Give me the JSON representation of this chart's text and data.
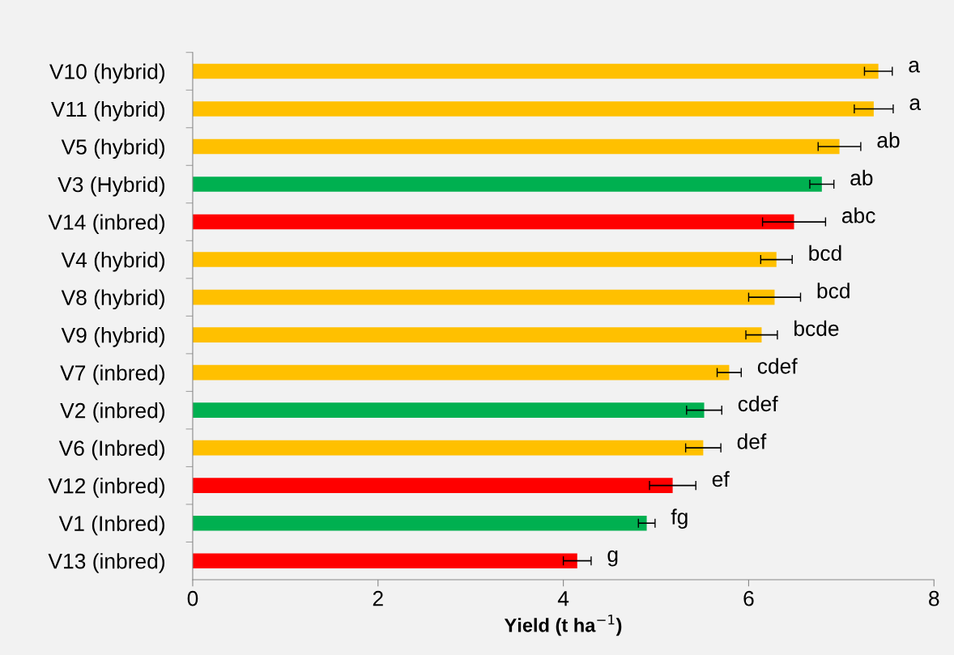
{
  "chart_data": {
    "type": "bar",
    "orientation": "horizontal",
    "xlabel": "Yield (t ha$^{−1}$)",
    "categories": [
      "V10 (hybrid)",
      "V11 (hybrid)",
      "V5 (hybrid)",
      "V3 (Hybrid)",
      "V14 (inbred)",
      "V4 (hybrid)",
      "V8 (hybrid)",
      "V9 (hybrid)",
      "V7 (inbred)",
      "V2 (inbred)",
      "V6 (Inbred)",
      "V12 (inbred)",
      "V1 (Inbred)",
      "V13 (inbred)"
    ],
    "values": [
      7.4,
      7.35,
      6.98,
      6.79,
      6.49,
      6.3,
      6.28,
      6.14,
      5.79,
      5.52,
      5.51,
      5.18,
      4.9,
      4.15
    ],
    "errors": [
      0.15,
      0.21,
      0.23,
      0.13,
      0.34,
      0.17,
      0.28,
      0.17,
      0.13,
      0.19,
      0.19,
      0.25,
      0.09,
      0.15
    ],
    "colors": [
      "#ffc000",
      "#ffc000",
      "#ffc000",
      "#00b050",
      "#ff0000",
      "#ffc000",
      "#ffc000",
      "#ffc000",
      "#ffc000",
      "#00b050",
      "#ffc000",
      "#ff0000",
      "#00b050",
      "#ff0000"
    ],
    "xlim": [
      0,
      8
    ],
    "xticks": [
      0,
      2,
      4,
      6,
      8
    ],
    "grid": false,
    "value_labels": [
      "a",
      "a",
      "ab",
      "ab",
      "abc",
      "bcd",
      "bcd",
      "bcde",
      "cdef",
      "cdef",
      "def",
      "ef",
      "fg",
      "g"
    ]
  }
}
